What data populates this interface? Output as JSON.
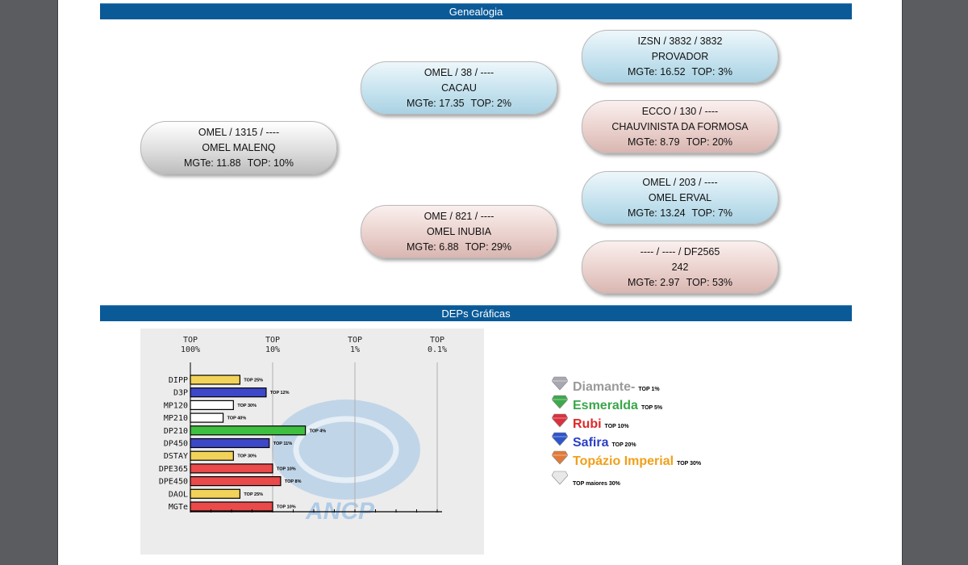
{
  "sections": {
    "genealogy_title": "Genealogia",
    "deps_title": "DEPs Gráficas"
  },
  "pedigree": {
    "animal": {
      "line1": "OMEL / 1315 / ----",
      "name": "OMEL MALENQ",
      "mgte": "MGTe: 11.88",
      "top": "TOP: 10%"
    },
    "sire": {
      "line1": "OMEL / 38 / ----",
      "name": "CACAU",
      "mgte": "MGTe: 17.35",
      "top": "TOP: 2%"
    },
    "dam": {
      "line1": "OME / 821 / ----",
      "name": "OMEL INUBIA",
      "mgte": "MGTe: 6.88",
      "top": "TOP: 29%"
    },
    "sire_sire": {
      "line1": "IZSN / 3832 / 3832",
      "name": "PROVADOR",
      "mgte": "MGTe: 16.52",
      "top": "TOP: 3%"
    },
    "sire_dam": {
      "line1": "ECCO / 130 / ----",
      "name": "CHAUVINISTA DA FORMOSA",
      "mgte": "MGTe: 8.79",
      "top": "TOP: 20%"
    },
    "dam_sire": {
      "line1": "OMEL / 203 / ----",
      "name": "OMEL ERVAL",
      "mgte": "MGTe: 13.24",
      "top": "TOP: 7%"
    },
    "dam_dam": {
      "line1": "---- / ---- / DF2565",
      "name": "242",
      "mgte": "MGTe: 2.97",
      "top": "TOP: 53%"
    }
  },
  "chart_data": {
    "type": "bar",
    "orientation": "horizontal",
    "axis_top_labels": [
      "TOP\n100%",
      "TOP\n10%",
      "TOP\n1%",
      "TOP\n0.1%"
    ],
    "categories": [
      "DIPP",
      "D3P",
      "MP120",
      "MP210",
      "DP210",
      "DP450",
      "DSTAY",
      "DPE365",
      "DPE450",
      "DAOL",
      "MGTe"
    ],
    "values_top_percent": [
      25,
      12,
      30,
      40,
      4,
      11,
      30,
      10,
      8,
      25,
      10
    ],
    "bar_labels": [
      "TOP 25%",
      "TOP 12%",
      "TOP 30%",
      "TOP 40%",
      "TOP 4%",
      "TOP 11%",
      "TOP 30%",
      "TOP 10%",
      "TOP 8%",
      "TOP 25%",
      "TOP 10%"
    ],
    "bar_colors": [
      "#f2d35a",
      "#3d47c9",
      "#ffffff",
      "#ffffff",
      "#3fbf3f",
      "#3d47c9",
      "#f2d35a",
      "#ea4a4a",
      "#ea4a4a",
      "#f2d35a",
      "#ea4a4a"
    ],
    "grid": true,
    "watermark": "ANCP"
  },
  "legend": [
    {
      "label": "Diamante",
      "suffix": " -",
      "top": "TOP 1%",
      "color": "#9a9a9a",
      "gem": "#a8a8b0"
    },
    {
      "label": "Esmeralda",
      "suffix": "",
      "top": "TOP 5%",
      "color": "#3aa64a",
      "gem": "#3fa84d"
    },
    {
      "label": "Rubi",
      "suffix": "",
      "top": "TOP 10%",
      "color": "#e02828",
      "gem": "#d8323e"
    },
    {
      "label": "Safira",
      "suffix": "",
      "top": "TOP 20%",
      "color": "#2a3fc4",
      "gem": "#2f55c8"
    },
    {
      "label": "Topázio Imperial",
      "suffix": "",
      "top": "TOP 30%",
      "color": "#f0a01a",
      "gem": "#e07a3a"
    },
    {
      "label": "",
      "suffix": "",
      "top": "TOP maiores 30%",
      "color": "#000000",
      "gem": "#e8e8e8"
    }
  ]
}
